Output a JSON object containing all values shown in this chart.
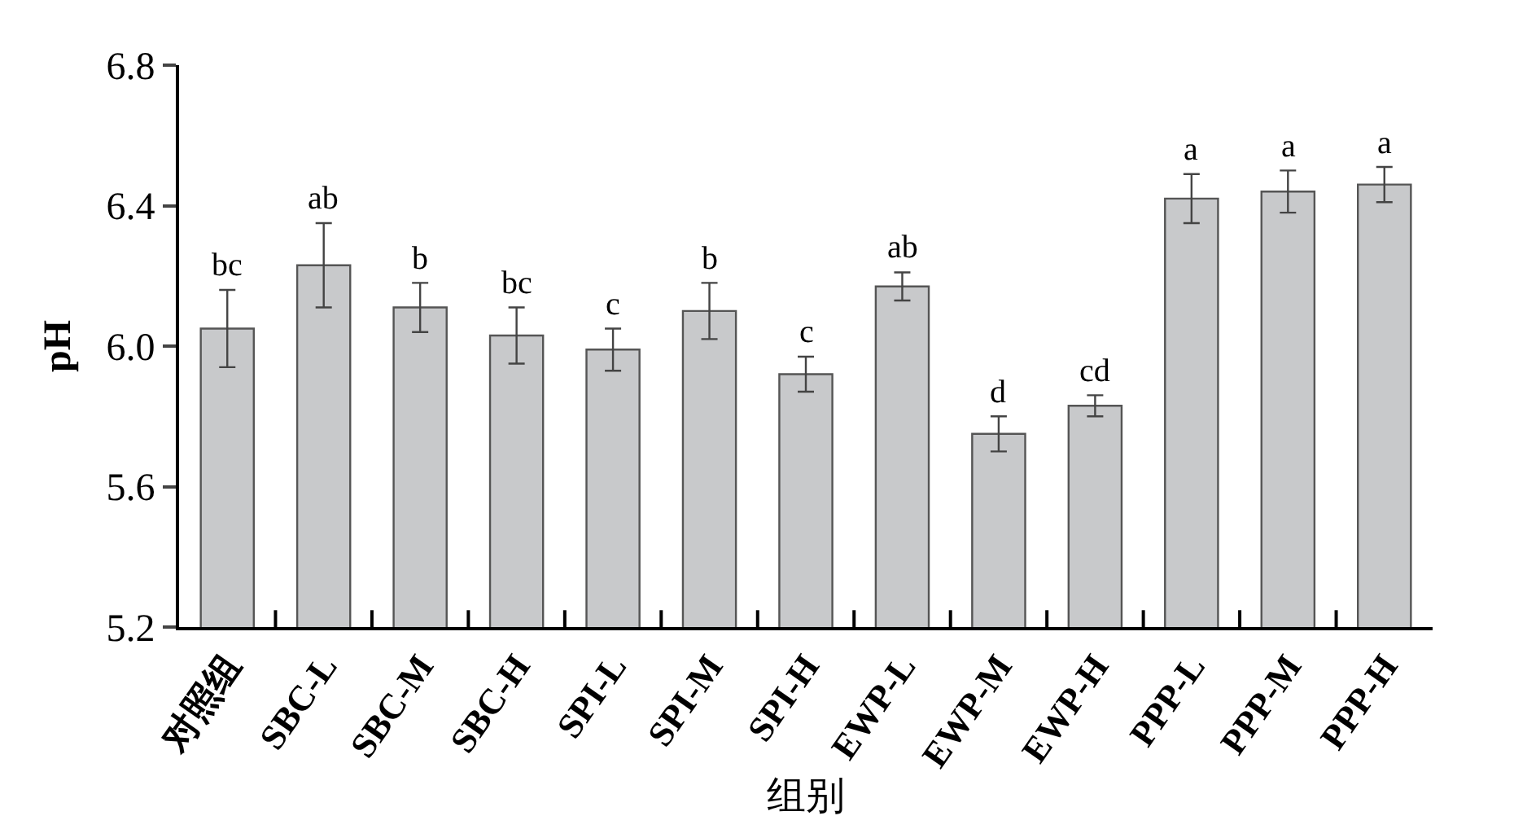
{
  "chart_data": {
    "type": "bar",
    "xlabel": "组别",
    "ylabel": "pH",
    "categories": [
      "对照组",
      "SBC-L",
      "SBC-M",
      "SBC-H",
      "SPI-L",
      "SPI-M",
      "SPI-H",
      "EWP-L",
      "EWP-M",
      "EWP-H",
      "PPP-L",
      "PPP-M",
      "PPP-H"
    ],
    "values": [
      6.05,
      6.23,
      6.11,
      6.03,
      5.99,
      6.1,
      5.92,
      6.17,
      5.75,
      5.83,
      6.42,
      6.44,
      6.46
    ],
    "errors": [
      0.11,
      0.12,
      0.07,
      0.08,
      0.06,
      0.08,
      0.05,
      0.04,
      0.05,
      0.03,
      0.07,
      0.06,
      0.05
    ],
    "color": "#c8c9cb",
    "ylim": [
      5.2,
      6.8
    ],
    "yticks": [
      {
        "value": 5.2,
        "label": "5.2"
      },
      {
        "value": 5.6,
        "label": "5.6"
      },
      {
        "value": 6.0,
        "label": "6.0"
      },
      {
        "value": 6.4,
        "label": "6.4"
      },
      {
        "value": 6.8,
        "label": "6.8"
      }
    ],
    "annotations": [
      {
        "text": "bc",
        "x": "对照组",
        "y": 6.16
      },
      {
        "text": "ab",
        "x": "SBC-L",
        "y": 6.35
      },
      {
        "text": "b",
        "x": "SBC-M",
        "y": 6.18
      },
      {
        "text": "bc",
        "x": "SBC-H",
        "y": 6.11
      },
      {
        "text": "c",
        "x": "SPI-L",
        "y": 6.05
      },
      {
        "text": "b",
        "x": "SPI-M",
        "y": 6.18
      },
      {
        "text": "c",
        "x": "SPI-H",
        "y": 5.97
      },
      {
        "text": "ab",
        "x": "EWP-L",
        "y": 6.21
      },
      {
        "text": "d",
        "x": "EWP-M",
        "y": 5.8
      },
      {
        "text": "cd",
        "x": "EWP-H",
        "y": 5.86
      },
      {
        "text": "a",
        "x": "PPP-L",
        "y": 6.49
      },
      {
        "text": "a",
        "x": "PPP-M",
        "y": 6.5
      },
      {
        "text": "a",
        "x": "PPP-H",
        "y": 6.51
      }
    ]
  }
}
